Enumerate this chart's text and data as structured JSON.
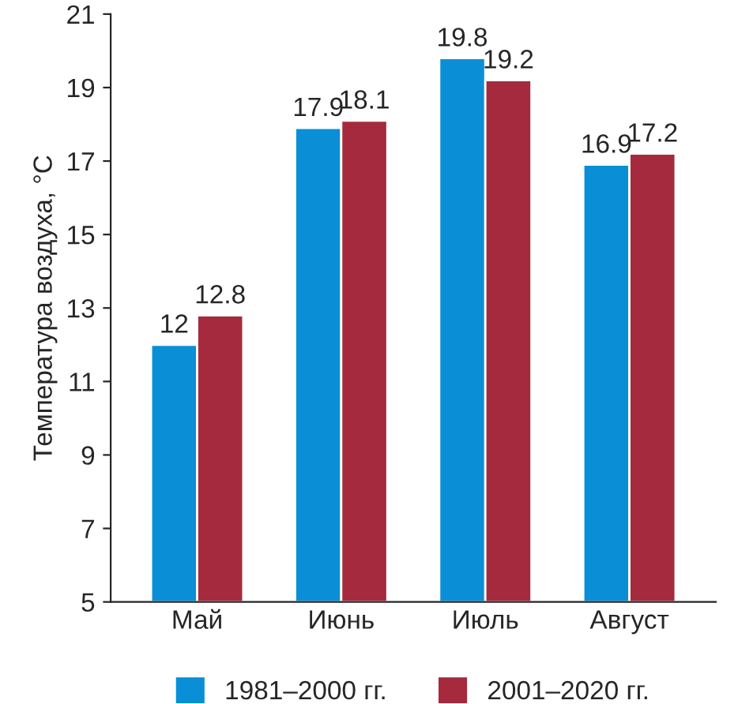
{
  "chart_data": {
    "type": "bar",
    "ylabel": "Температура воздуха, °C",
    "categories": [
      "Май",
      "Июнь",
      "Июль",
      "Август"
    ],
    "series": [
      {
        "name": "1981–2000 гг.",
        "color": "#0a8fd6",
        "values": [
          12,
          17.9,
          19.8,
          16.9
        ]
      },
      {
        "name": "2001–2020 гг.",
        "color": "#a52a3d",
        "values": [
          12.8,
          18.1,
          19.2,
          17.2
        ]
      }
    ],
    "ylim": [
      5,
      21
    ],
    "yticks": [
      5,
      7,
      9,
      11,
      13,
      15,
      17,
      19,
      21
    ],
    "grid": false,
    "legend": "bottom",
    "data_labels": true
  }
}
